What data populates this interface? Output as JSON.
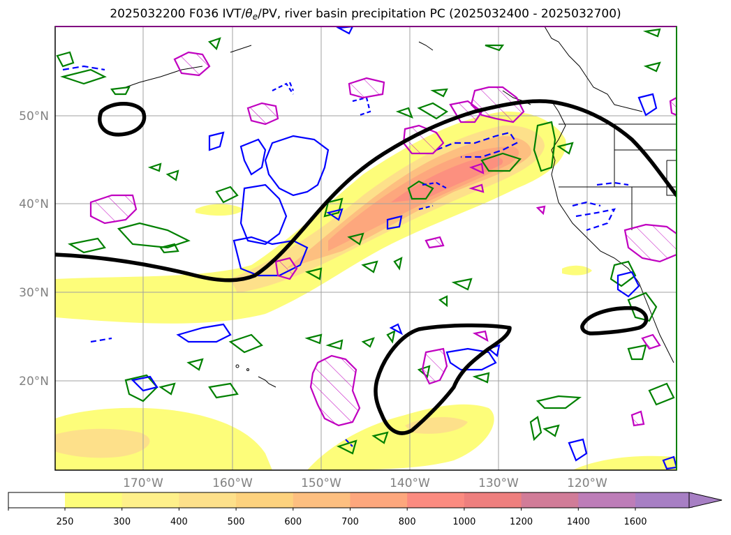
{
  "figure": {
    "title_prefix": "2025032200 F036 IVT/",
    "title_theta": "θ",
    "title_sub": "e",
    "title_suffix": "/PV, river basin precipitation PC (2025032400 - 2025032700)"
  },
  "map": {
    "lat_labels": [
      "50°N",
      "40°N",
      "30°N",
      "20°N"
    ],
    "lon_labels": [
      "170°W",
      "160°W",
      "150°W",
      "140°W",
      "130°W",
      "120°W"
    ]
  },
  "colorbar": {
    "levels": [
      "250",
      "300",
      "400",
      "500",
      "600",
      "700",
      "800",
      "1000",
      "1200",
      "1400",
      "1600"
    ],
    "colors": [
      "#ffffff",
      "#fdfd7a",
      "#fef08a",
      "#fde08a",
      "#fdd27e",
      "#fdbf80",
      "#fda77d",
      "#fb8b80",
      "#ee7f7e",
      "#d17c98",
      "#bd7db8",
      "#a77fc4"
    ],
    "extend": "max"
  },
  "chart_data": {
    "type": "heatmap",
    "variable": "IVT",
    "contour_colors": {
      "ivt_fill": "#fdd27e",
      "thick_black": "#000000",
      "blue_contour": "#0000ff",
      "green_contour": "#008000",
      "magenta_contour": "#c000c0"
    }
  }
}
